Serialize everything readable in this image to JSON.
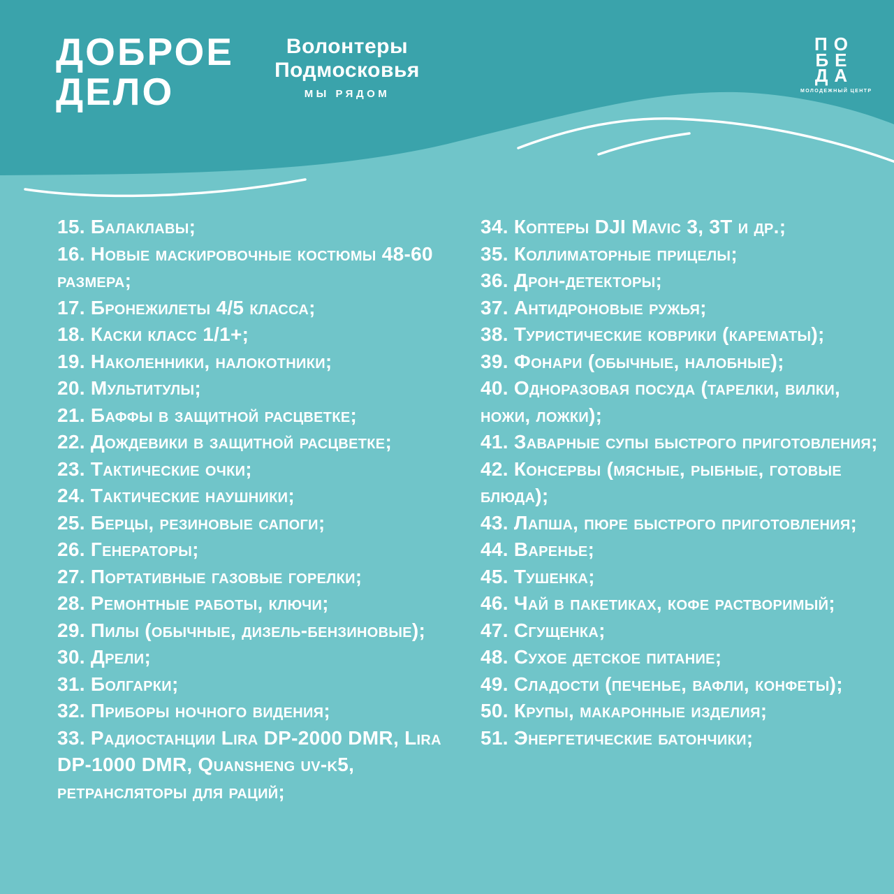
{
  "colors": {
    "teal_dark": "#3AA3AB",
    "teal_light": "#70C5C9",
    "text": "#FFFFFF"
  },
  "header": {
    "title_line1": "ДОБРОЕ",
    "title_line2": "ДЕЛО",
    "volunteers_line1": "Волонтеры",
    "volunteers_line2": "Подмосковья",
    "volunteers_tagline": "МЫ РЯДОМ",
    "pobeda_line1": "ПО",
    "pobeda_line2": "БЕ",
    "pobeda_line3": "ДА",
    "pobeda_tagline": "МОЛОДЕЖНЫЙ ЦЕНТР"
  },
  "list": {
    "left": [
      {
        "num": "15.",
        "text": "Балаклавы;"
      },
      {
        "num": "16.",
        "text": "Новые маскировочные костюмы 48-60 размера;"
      },
      {
        "num": "17.",
        "text": "Бронежилеты 4/5 класса;"
      },
      {
        "num": "18.",
        "text": "Каски класс 1/1+;"
      },
      {
        "num": "19.",
        "text": "Наколенники, налокотники;"
      },
      {
        "num": "20.",
        "text": "Мультитулы;"
      },
      {
        "num": "21.",
        "text": "Баффы в защитной расцветке;"
      },
      {
        "num": "22.",
        "text": "Дождевики в защитной расцветке;"
      },
      {
        "num": "23.",
        "text": "Тактические очки;"
      },
      {
        "num": "24.",
        "text": "Тактические наушники;"
      },
      {
        "num": "25.",
        "text": "Берцы, резиновые сапоги;"
      },
      {
        "num": "26.",
        "text": "Генераторы;"
      },
      {
        "num": "27.",
        "text": "Портативные газовые горелки;"
      },
      {
        "num": "28.",
        "text": "Ремонтные работы, ключи;"
      },
      {
        "num": "29.",
        "text": "Пилы (обычные, дизель-бензиновые);"
      },
      {
        "num": "30.",
        "text": "Дрели;"
      },
      {
        "num": "31.",
        "text": "Болгарки;"
      },
      {
        "num": "32.",
        "text": "Приборы ночного видения;"
      },
      {
        "num": "33.",
        "text": "Радиостанции Lira DP-2000 DMR, Lira DP-1000 DMR, Quansheng uv-k5, ретрансляторы для раций;"
      }
    ],
    "right": [
      {
        "num": "34.",
        "text": "Коптеры DJI Mavic 3, 3T и др.;"
      },
      {
        "num": "35.",
        "text": "Коллиматорные прицелы;"
      },
      {
        "num": "36.",
        "text": "Дрон-детекторы;"
      },
      {
        "num": "37.",
        "text": "Антидроновые ружья;"
      },
      {
        "num": "38.",
        "text": "Туристические коврики (карематы);"
      },
      {
        "num": "39.",
        "text": "Фонари (обычные, налобные);"
      },
      {
        "num": "40.",
        "text": "Одноразовая посуда (тарелки, вилки, ножи, ложки);"
      },
      {
        "num": "41.",
        "text": "Заварные супы быстрого приготовления;"
      },
      {
        "num": "42.",
        "text": "Консервы (мясные, рыбные, готовые блюда);"
      },
      {
        "num": "43.",
        "text": "Лапша, пюре быстрого приготовления;"
      },
      {
        "num": "44.",
        "text": "Варенье;"
      },
      {
        "num": "45.",
        "text": "Тушенка;"
      },
      {
        "num": "46.",
        "text": "Чай в пакетиках, кофе растворимый;"
      },
      {
        "num": "47.",
        "text": "Сгущенка;"
      },
      {
        "num": "48.",
        "text": "Сухое детское питание;"
      },
      {
        "num": "49.",
        "text": "Сладости (печенье, вафли, конфеты);"
      },
      {
        "num": "50.",
        "text": "Крупы, макаронные изделия;"
      },
      {
        "num": "51.",
        "text": "Энергетические батончики;"
      }
    ]
  }
}
